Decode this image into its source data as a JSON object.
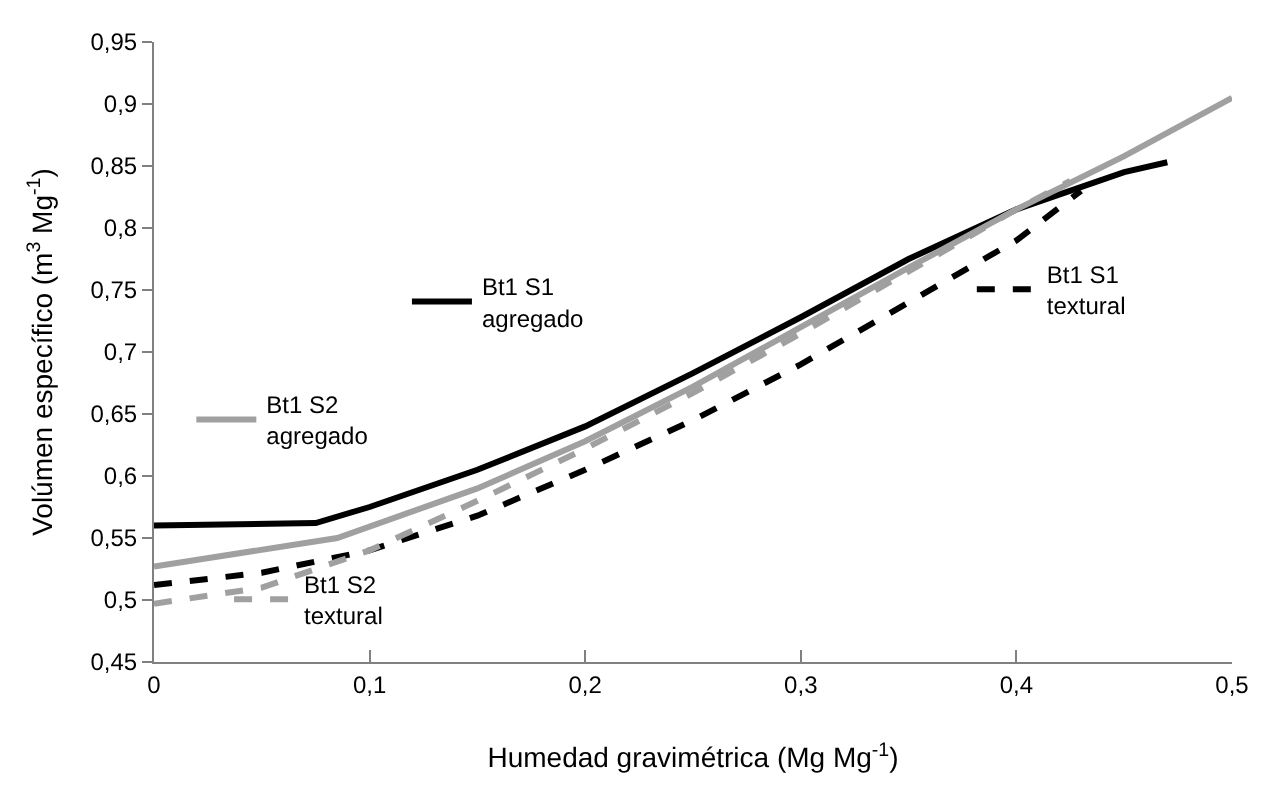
{
  "chart_data": {
    "type": "line",
    "xlabel": "Humedad gravimétrica (Mg Mg$^{-1}$)",
    "ylabel": "Volúmen específico (m$^{3}$ Mg$^{-1}$)",
    "xlim": [
      0,
      0.5
    ],
    "xticks": [
      {
        "value": 0,
        "label": "0"
      },
      {
        "value": 0.1,
        "label": "0,1"
      },
      {
        "value": 0.2,
        "label": "0,2"
      },
      {
        "value": 0.3,
        "label": "0,3"
      },
      {
        "value": 0.4,
        "label": "0,4"
      },
      {
        "value": 0.5,
        "label": "0,5"
      }
    ],
    "ylim": [
      0.45,
      0.95
    ],
    "yticks": [
      {
        "value": 0.45,
        "label": "0,45"
      },
      {
        "value": 0.5,
        "label": "0,5"
      },
      {
        "value": 0.55,
        "label": "0,55"
      },
      {
        "value": 0.6,
        "label": "0,6"
      },
      {
        "value": 0.65,
        "label": "0,65"
      },
      {
        "value": 0.7,
        "label": "0,7"
      },
      {
        "value": 0.75,
        "label": "0,75"
      },
      {
        "value": 0.8,
        "label": "0,8"
      },
      {
        "value": 0.85,
        "label": "0,85"
      },
      {
        "value": 0.9,
        "label": "0,9"
      },
      {
        "value": 0.95,
        "label": "0,95"
      }
    ],
    "legend": "bottom",
    "marker": "none",
    "series": [
      {
        "name": "Bt1 S1 agregado",
        "color": "#000000",
        "line_style": "solid",
        "x": [
          0,
          0.075,
          0.1,
          0.15,
          0.2,
          0.25,
          0.3,
          0.35,
          0.4,
          0.45,
          0.47
        ],
        "values": [
          0.56,
          0.562,
          0.575,
          0.605,
          0.64,
          0.683,
          0.728,
          0.775,
          0.815,
          0.845,
          0.853
        ]
      },
      {
        "name": "Bt1 S2 agregado",
        "color": "#a0a0a0",
        "line_style": "solid",
        "x": [
          0,
          0.085,
          0.15,
          0.2,
          0.25,
          0.3,
          0.35,
          0.4,
          0.45,
          0.5
        ],
        "values": [
          0.527,
          0.55,
          0.59,
          0.628,
          0.672,
          0.72,
          0.768,
          0.815,
          0.858,
          0.905
        ]
      },
      {
        "name": "Bt1 S1 textural",
        "color": "#000000",
        "line_style": "dashed",
        "x": [
          0,
          0.05,
          0.1,
          0.15,
          0.2,
          0.25,
          0.3,
          0.35,
          0.4,
          0.43
        ],
        "values": [
          0.512,
          0.522,
          0.54,
          0.568,
          0.605,
          0.645,
          0.69,
          0.74,
          0.79,
          0.83
        ]
      },
      {
        "name": "Bt1 S2 textural",
        "color": "#a0a0a0",
        "line_style": "dashed",
        "x": [
          0,
          0.05,
          0.1,
          0.15,
          0.2,
          0.25,
          0.3,
          0.35,
          0.4,
          0.425
        ],
        "values": [
          0.497,
          0.51,
          0.54,
          0.58,
          0.622,
          0.667,
          0.715,
          0.765,
          0.815,
          0.838
        ]
      }
    ]
  }
}
